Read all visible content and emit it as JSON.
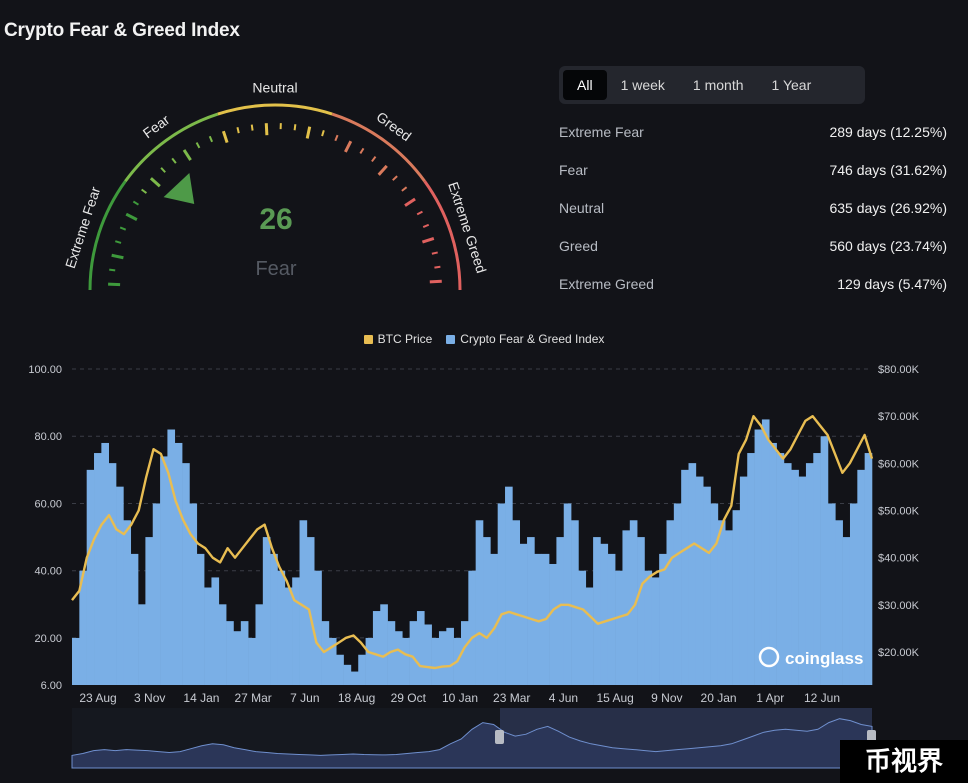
{
  "page_title": "Crypto Fear & Greed Index",
  "gauge": {
    "value": 26,
    "classification": "Fear",
    "labels": [
      "Extreme Fear",
      "Fear",
      "Neutral",
      "Greed",
      "Extreme Greed"
    ],
    "colors": {
      "extreme_fear": "#3e9a3c",
      "fear": "#7cb94a",
      "neutral": "#e2c14a",
      "greed": "#d97a5c",
      "extreme_greed": "#e0615f"
    }
  },
  "tabs": [
    {
      "label": "All",
      "active": true
    },
    {
      "label": "1 week",
      "active": false
    },
    {
      "label": "1 month",
      "active": false
    },
    {
      "label": "1 Year",
      "active": false
    }
  ],
  "stats": [
    {
      "label": "Extreme Fear",
      "value": "289 days (12.25%)"
    },
    {
      "label": "Fear",
      "value": "746 days (31.62%)"
    },
    {
      "label": "Neutral",
      "value": "635 days (26.92%)"
    },
    {
      "label": "Greed",
      "value": "560 days (23.74%)"
    },
    {
      "label": "Extreme Greed",
      "value": "129 days (5.47%)"
    }
  ],
  "watermark_logo": "coinglass",
  "corner_badge": "币视界",
  "chart_data": {
    "type": "bar",
    "legend": [
      {
        "name": "BTC Price",
        "color": "#e8bd52"
      },
      {
        "name": "Crypto Fear & Greed Index",
        "color": "#7aafe6"
      }
    ],
    "left_axis": {
      "ticks": [
        "100.00",
        "80.00",
        "60.00",
        "40.00",
        "20.00",
        "6.00"
      ],
      "min": 6,
      "max": 100
    },
    "right_axis": {
      "ticks": [
        "$80.00K",
        "$70.00K",
        "$60.00K",
        "$50.00K",
        "$40.00K",
        "$30.00K",
        "$20.00K"
      ],
      "min": 13000,
      "max": 80000
    },
    "x_ticks": [
      "23 Aug",
      "3 Nov",
      "14 Jan",
      "27 Mar",
      "7 Jun",
      "18 Aug",
      "29 Oct",
      "10 Jan",
      "23 Mar",
      "4 Jun",
      "15 Aug",
      "9 Nov",
      "20 Jan",
      "1 Apr",
      "12 Jun"
    ],
    "grid": true,
    "series": [
      {
        "name": "Crypto Fear & Greed Index",
        "kind": "bar",
        "values": [
          20,
          40,
          70,
          75,
          78,
          72,
          65,
          55,
          45,
          30,
          50,
          60,
          74,
          82,
          78,
          72,
          60,
          45,
          35,
          38,
          30,
          25,
          22,
          25,
          20,
          30,
          50,
          45,
          40,
          35,
          38,
          55,
          50,
          40,
          25,
          20,
          15,
          12,
          10,
          15,
          20,
          28,
          30,
          25,
          22,
          20,
          25,
          28,
          24,
          20,
          22,
          23,
          20,
          25,
          40,
          55,
          50,
          45,
          60,
          65,
          55,
          48,
          50,
          45,
          45,
          42,
          50,
          60,
          55,
          40,
          35,
          50,
          48,
          45,
          40,
          52,
          55,
          50,
          40,
          38,
          45,
          55,
          60,
          70,
          72,
          68,
          65,
          60,
          55,
          52,
          58,
          68,
          75,
          82,
          85,
          78,
          75,
          72,
          70,
          68,
          72,
          75,
          80,
          60,
          55,
          50,
          60,
          70,
          75
        ]
      },
      {
        "name": "BTC Price",
        "kind": "line",
        "values": [
          31000,
          33000,
          40000,
          44000,
          47000,
          49000,
          46000,
          45000,
          47000,
          50000,
          57000,
          63000,
          62000,
          58000,
          52000,
          48000,
          45000,
          43000,
          42000,
          40000,
          39000,
          42000,
          40000,
          42000,
          44000,
          46000,
          47000,
          42000,
          38000,
          35000,
          31000,
          30000,
          29000,
          22000,
          20000,
          21000,
          22000,
          23000,
          23500,
          22000,
          20000,
          19500,
          19000,
          20000,
          20500,
          19500,
          19000,
          17000,
          16800,
          16600,
          16900,
          17000,
          18000,
          21000,
          23000,
          24000,
          23000,
          25000,
          28000,
          28500,
          28000,
          27500,
          27000,
          26500,
          27000,
          29000,
          30000,
          30000,
          29500,
          29000,
          27500,
          26000,
          26500,
          27000,
          27500,
          28000,
          30000,
          34500,
          36000,
          37000,
          37500,
          40000,
          41000,
          42000,
          43000,
          42000,
          41000,
          43000,
          48000,
          51000,
          62000,
          65000,
          70000,
          68000,
          65000,
          63000,
          61000,
          63000,
          66000,
          69000,
          70000,
          68000,
          66000,
          62000,
          58000,
          60000,
          63000,
          66000,
          61000
        ]
      }
    ],
    "navigator": {
      "values": [
        28000,
        30000,
        33000,
        34000,
        33000,
        34000,
        33500,
        33000,
        32000,
        31000,
        32000,
        35000,
        38000,
        40000,
        39000,
        36000,
        34000,
        32000,
        31000,
        30000,
        29500,
        29000,
        28500,
        28000,
        28500,
        29000,
        29500,
        29000,
        28800,
        28500,
        29000,
        30000,
        31000,
        32000,
        34000,
        40000,
        45000,
        55000,
        62000,
        60000,
        52000,
        48000,
        50000,
        55000,
        58000,
        53000,
        47000,
        43000,
        40000,
        38000,
        36000,
        35000,
        34000,
        33000,
        32000,
        33000,
        34000,
        35000,
        36000,
        37000,
        38000,
        40000,
        44000,
        48000,
        52000,
        54000,
        55000,
        54000,
        53000,
        55000,
        62000,
        66000,
        64000,
        60000,
        58000
      ]
    }
  }
}
